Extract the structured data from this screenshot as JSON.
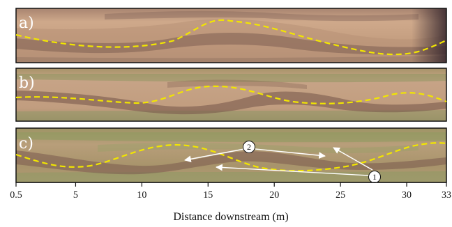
{
  "panels": [
    {
      "label": "a)",
      "id": "a"
    },
    {
      "label": "b)",
      "id": "b"
    },
    {
      "label": "c)",
      "id": "c"
    }
  ],
  "axis": {
    "title": "Distance downstream (m)",
    "min": 0.5,
    "max": 33,
    "ticks": [
      "0.5",
      "5",
      "10",
      "15",
      "20",
      "25",
      "30",
      "33"
    ]
  },
  "annotations": {
    "callout_1": "1",
    "callout_2": "2"
  },
  "colors": {
    "thalweg": "#f2e600",
    "sand": "#c9a37d",
    "channel": "#7a5a4a",
    "vegetation": "#8b9a60",
    "frame": "#111111"
  }
}
